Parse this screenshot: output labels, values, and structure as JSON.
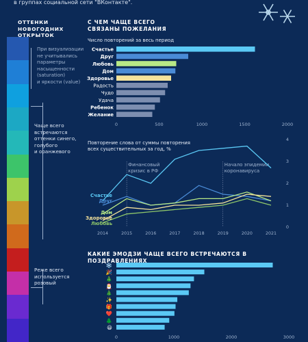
{
  "intro": "в группах социальной сети \"ВКонтакте\".",
  "sidebar": {
    "title": "ОТТЕНКИ\nНОВОГОДНИХ\nОТКРЫТОК",
    "note_method": "При визуализации\nне учитывались\nпараметры\nнасыщенности\n(saturation)\nи яркости (value)",
    "note_often": "Чаще всего\nвстречаются\nоттенки синего,\nголубого\nи оранжевого",
    "note_rare": "Реже всего\nиспользуется\nрозовый",
    "strip_colors": [
      "#2558b0",
      "#1f7fd6",
      "#0fa0df",
      "#1ca8c4",
      "#24b8b8",
      "#3dc46a",
      "#9ed24c",
      "#c8962a",
      "#d06a1c",
      "#c41e1e",
      "#c42fa8",
      "#6a2ad0",
      "#4226c8"
    ]
  },
  "colors": {
    "background": "#0c2a57",
    "bar_main": "#5bc9f5",
    "bar_mid": "#4a8bd6",
    "bar_grey": "#7d8eb0",
    "green": "#b8e986",
    "yellow": "#f5e39b",
    "axis_text": "#9fb3cf"
  },
  "chart_data": [
    {
      "type": "bar",
      "orientation": "horizontal",
      "title": "С ЧЕМ ЧАЩЕ ВСЕГО\nСВЯЗАНЫ ПОЖЕЛАНИЯ",
      "subtitle": "Число повторений за весь период",
      "categories": [
        "Счастье",
        "Друг",
        "Любовь",
        "Дом",
        "Здоровье",
        "Радость",
        "Чудо",
        "Удача",
        "Ребенок",
        "Желание"
      ],
      "values": [
        1620,
        840,
        700,
        690,
        640,
        600,
        570,
        510,
        450,
        420
      ],
      "bold_categories": [
        "Счастье",
        "Друг",
        "Любовь",
        "Дом",
        "Здоровье",
        "Ребенок",
        "Желание"
      ],
      "bar_colors": [
        "#5bc9f5",
        "#4a8bd6",
        "#b8e986",
        "#4a8bd6",
        "#f5e39b",
        "#7d8eb0",
        "#7d8eb0",
        "#7d8eb0",
        "#7d8eb0",
        "#7d8eb0"
      ],
      "xlim": [
        0,
        2000
      ],
      "xticks": [
        "0",
        "500",
        "1000",
        "1500",
        "2000"
      ],
      "grid": false
    },
    {
      "type": "line",
      "title": "Повторение слова от суммы повторения\nвсех существительных за год, %",
      "x": [
        2014,
        2015,
        2016,
        2017,
        2018,
        2019,
        2020,
        2021
      ],
      "xticks": [
        "2014",
        "2015",
        "2016",
        "2017",
        "2018",
        "2019",
        "2020",
        "2021"
      ],
      "yticks": [
        "0",
        "1",
        "2",
        "3",
        "4"
      ],
      "ylim": [
        0,
        4
      ],
      "series": [
        {
          "name": "Счастье",
          "color": "#5bc9f5",
          "values": [
            1.2,
            2.4,
            2.0,
            3.1,
            3.5,
            3.6,
            3.7,
            2.7
          ]
        },
        {
          "name": "Друг",
          "color": "#4a8bd6",
          "values": [
            1.0,
            1.4,
            1.0,
            1.1,
            1.9,
            1.5,
            1.4,
            1.2
          ]
        },
        {
          "name": "Дом",
          "color": "#b8e986",
          "values": [
            0.6,
            1.3,
            1.0,
            1.1,
            1.3,
            1.3,
            1.6,
            1.2
          ]
        },
        {
          "name": "Здоровье",
          "color": "#f5e39b",
          "values": [
            0.3,
            0.9,
            0.8,
            1.0,
            1.0,
            1.1,
            1.5,
            1.4
          ]
        },
        {
          "name": "Любовь",
          "color": "#8fc76a",
          "values": [
            0.2,
            0.6,
            0.7,
            0.8,
            0.9,
            1.0,
            1.3,
            1.0
          ]
        }
      ],
      "annotations": [
        {
          "text": "Финансовый\nкризис в РФ",
          "x": 2015
        },
        {
          "text": "Начало эпидемии\nкоронавируса",
          "x": 2019
        }
      ],
      "grid": false
    },
    {
      "type": "bar",
      "orientation": "horizontal",
      "title": "КАКИЕ ЭМОДЗИ ЧАЩЕ ВСЕГО ВСТРЕЧАЮТСЯ В ПОЗДРАВЛЕНИЯХ",
      "categories": [
        "❄️",
        "🎉",
        "🎄",
        "🎅",
        "🎄",
        "✨",
        "🎁",
        "❤️",
        "🌲",
        "😃"
      ],
      "values": [
        2720,
        1530,
        1350,
        1290,
        1260,
        1060,
        1030,
        1010,
        920,
        840
      ],
      "bar_colors": [
        "#5bc9f5",
        "#5bc9f5",
        "#5bc9f5",
        "#5bc9f5",
        "#5bc9f5",
        "#5bc9f5",
        "#5bc9f5",
        "#5bc9f5",
        "#5bc9f5",
        "#5bc9f5"
      ],
      "xlim": [
        0,
        3000
      ],
      "xticks": [
        "0",
        "1000",
        "2000",
        "3000"
      ],
      "grid": false
    }
  ]
}
